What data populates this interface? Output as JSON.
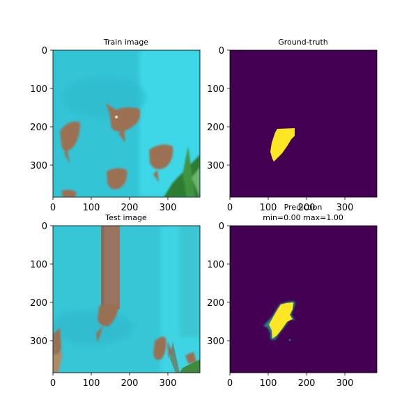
{
  "figure": {
    "background": "#ffffff"
  },
  "colors": {
    "background_class": "#440154",
    "foreground_class": "#fde725",
    "water": "#36c8d8",
    "water_light": "#4ee2ee",
    "fish": "#9a7050",
    "plant": "#2f7a2e"
  },
  "chart_data": [
    {
      "type": "heatmap",
      "title": "Train image",
      "content": "photograph of angelfish in a cyan aquarium",
      "xlim": [
        0,
        384
      ],
      "ylim": [
        384,
        0
      ],
      "xticks": [
        0,
        100,
        200,
        300
      ],
      "yticks": [
        0,
        100,
        200,
        300
      ],
      "grid": false
    },
    {
      "type": "heatmap",
      "title": "Ground-truth",
      "content": "binary mask, single yellow region on purple background",
      "values_range": [
        0,
        1
      ],
      "xlim": [
        0,
        384
      ],
      "ylim": [
        384,
        0
      ],
      "xticks": [
        0,
        100,
        200,
        300
      ],
      "yticks": [
        0,
        100,
        200,
        300
      ],
      "grid": false
    },
    {
      "type": "heatmap",
      "title": "Test image",
      "content": "photograph of angelfish in a cyan aquarium with a brown vertical pole",
      "xlim": [
        0,
        384
      ],
      "ylim": [
        384,
        0
      ],
      "xticks": [
        0,
        100,
        200,
        300
      ],
      "yticks": [
        0,
        100,
        200,
        300
      ],
      "grid": false
    },
    {
      "type": "heatmap",
      "title": "Prediction",
      "subtitle": "min=0.00 max=1.00",
      "values_range": [
        0.0,
        1.0
      ],
      "xlim": [
        0,
        384
      ],
      "ylim": [
        384,
        0
      ],
      "xticks": [
        0,
        100,
        200,
        300
      ],
      "yticks": [
        0,
        100,
        200,
        300
      ],
      "grid": false
    }
  ]
}
